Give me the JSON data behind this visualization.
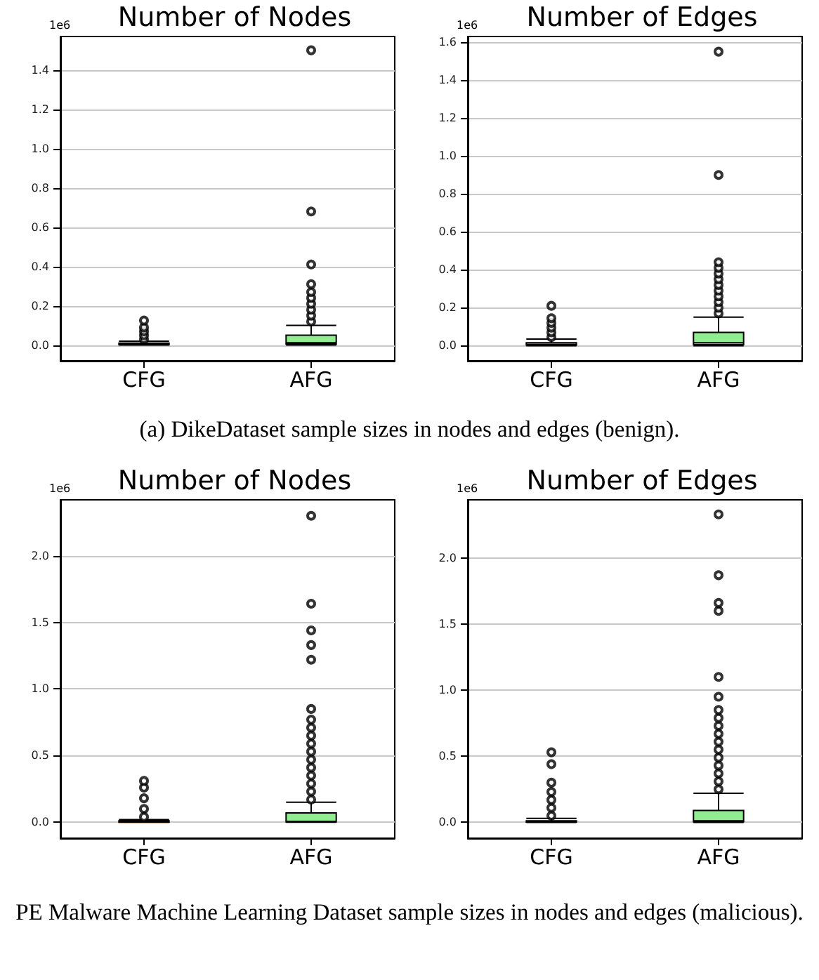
{
  "chart_data": [
    {
      "type": "box",
      "title": "Number of Nodes",
      "ylabel": "1e6",
      "categories": [
        "CFG",
        "AFG"
      ],
      "color": "#90ee90",
      "grid": "y",
      "ylim": [
        -0.08,
        1.57
      ],
      "yticks": [
        {
          "value": 0,
          "label": "0.0"
        },
        {
          "value": 0.2,
          "label": "0.2"
        },
        {
          "value": 0.4,
          "label": "0.4"
        },
        {
          "value": 0.6,
          "label": "0.6"
        },
        {
          "value": 0.8,
          "label": "0.8"
        },
        {
          "value": 1.0,
          "label": "1.0"
        },
        {
          "value": 1.2,
          "label": "1.2"
        },
        {
          "value": 1.4,
          "label": "1.4"
        }
      ],
      "boxes": [
        {
          "low": 0,
          "q1": 0.002,
          "median": 0.005,
          "q3": 0.01,
          "high": 0.02,
          "outliers": [
            0.03,
            0.05,
            0.07,
            0.09,
            0.125
          ]
        },
        {
          "low": 0,
          "q1": 0.005,
          "median": 0.012,
          "q3": 0.05,
          "high": 0.1,
          "outliers": [
            0.12,
            0.15,
            0.18,
            0.21,
            0.24,
            0.27,
            0.31,
            0.41,
            0.68,
            1.5
          ]
        }
      ],
      "annotations": [
        "(a) DikeDataset sample sizes in nodes and edges (benign)."
      ]
    },
    {
      "type": "box",
      "title": "Number of Edges",
      "ylabel": "1e6",
      "categories": [
        "CFG",
        "AFG"
      ],
      "color": "#90ee90",
      "grid": "y",
      "ylim": [
        -0.08,
        1.63
      ],
      "yticks": [
        {
          "value": 0,
          "label": "0.0"
        },
        {
          "value": 0.2,
          "label": "0.2"
        },
        {
          "value": 0.4,
          "label": "0.4"
        },
        {
          "value": 0.6,
          "label": "0.6"
        },
        {
          "value": 0.8,
          "label": "0.8"
        },
        {
          "value": 1.0,
          "label": "1.0"
        },
        {
          "value": 1.2,
          "label": "1.2"
        },
        {
          "value": 1.4,
          "label": "1.4"
        },
        {
          "value": 1.6,
          "label": "1.6"
        }
      ],
      "boxes": [
        {
          "low": 0,
          "q1": 0.003,
          "median": 0.006,
          "q3": 0.015,
          "high": 0.035,
          "outliers": [
            0.045,
            0.07,
            0.095,
            0.12,
            0.145,
            0.21
          ]
        },
        {
          "low": 0,
          "q1": 0.005,
          "median": 0.015,
          "q3": 0.07,
          "high": 0.15,
          "outliers": [
            0.17,
            0.2,
            0.23,
            0.26,
            0.29,
            0.32,
            0.35,
            0.38,
            0.41,
            0.44,
            0.9,
            1.55
          ]
        }
      ]
    },
    {
      "type": "box",
      "title": "Number of Nodes",
      "ylabel": "1e6",
      "categories": [
        "CFG",
        "AFG"
      ],
      "color": "#90ee90",
      "grid": "y",
      "ylim": [
        -0.12,
        2.42
      ],
      "yticks": [
        {
          "value": 0,
          "label": "0.0"
        },
        {
          "value": 0.5,
          "label": "0.5"
        },
        {
          "value": 1.0,
          "label": "1.0"
        },
        {
          "value": 1.5,
          "label": "1.5"
        },
        {
          "value": 2.0,
          "label": "2.0"
        }
      ],
      "boxes": [
        {
          "low": 0,
          "q1": 0,
          "median": 0.002,
          "q3": 0.01,
          "high": 0.02,
          "outliers": [
            0.04,
            0.1,
            0.18,
            0.26,
            0.31
          ]
        },
        {
          "low": 0,
          "q1": 0.002,
          "median": 0.006,
          "q3": 0.07,
          "high": 0.15,
          "outliers": [
            0.17,
            0.23,
            0.29,
            0.35,
            0.41,
            0.47,
            0.53,
            0.59,
            0.65,
            0.71,
            0.77,
            0.85,
            1.22,
            1.33,
            1.44,
            1.64,
            2.3
          ]
        }
      ],
      "annotations": [
        "PE Malware Machine Learning Dataset sample sizes in nodes and edges (malicious)."
      ]
    },
    {
      "type": "box",
      "title": "Number of Edges",
      "ylabel": "1e6",
      "categories": [
        "CFG",
        "AFG"
      ],
      "color": "#90ee90",
      "grid": "y",
      "ylim": [
        -0.12,
        2.44
      ],
      "yticks": [
        {
          "value": 0,
          "label": "0.0"
        },
        {
          "value": 0.5,
          "label": "0.5"
        },
        {
          "value": 1.0,
          "label": "1.0"
        },
        {
          "value": 1.5,
          "label": "1.5"
        },
        {
          "value": 2.0,
          "label": "2.0"
        }
      ],
      "boxes": [
        {
          "low": 0,
          "q1": 0.002,
          "median": 0.005,
          "q3": 0.012,
          "high": 0.03,
          "outliers": [
            0.05,
            0.11,
            0.17,
            0.23,
            0.3,
            0.44,
            0.53
          ]
        },
        {
          "low": 0,
          "q1": 0.005,
          "median": 0.012,
          "q3": 0.09,
          "high": 0.22,
          "outliers": [
            0.25,
            0.31,
            0.37,
            0.43,
            0.49,
            0.55,
            0.61,
            0.67,
            0.73,
            0.79,
            0.85,
            0.95,
            1.1,
            1.6,
            1.66,
            1.87,
            2.33
          ]
        }
      ]
    }
  ]
}
